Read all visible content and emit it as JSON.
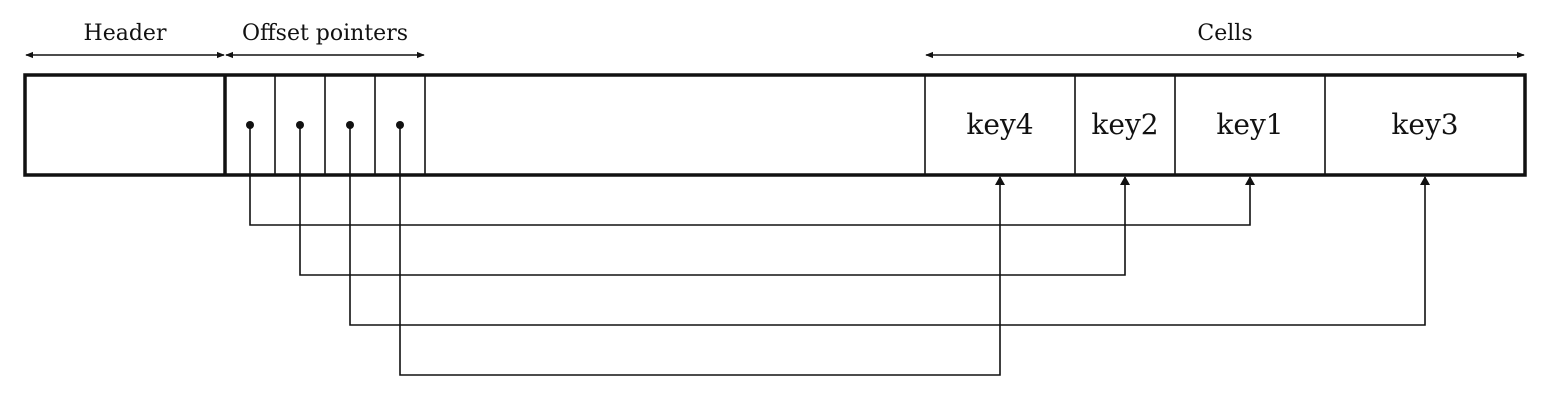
{
  "labels": {
    "header": "Header",
    "offset_pointers": "Offset pointers",
    "cells": "Cells"
  },
  "cells": [
    "key4",
    "key2",
    "key1",
    "key3"
  ],
  "pointer_targets": [
    "key1",
    "key2",
    "key3",
    "key4"
  ],
  "colors": {
    "ink": "#111111",
    "background": "#ffffff"
  }
}
